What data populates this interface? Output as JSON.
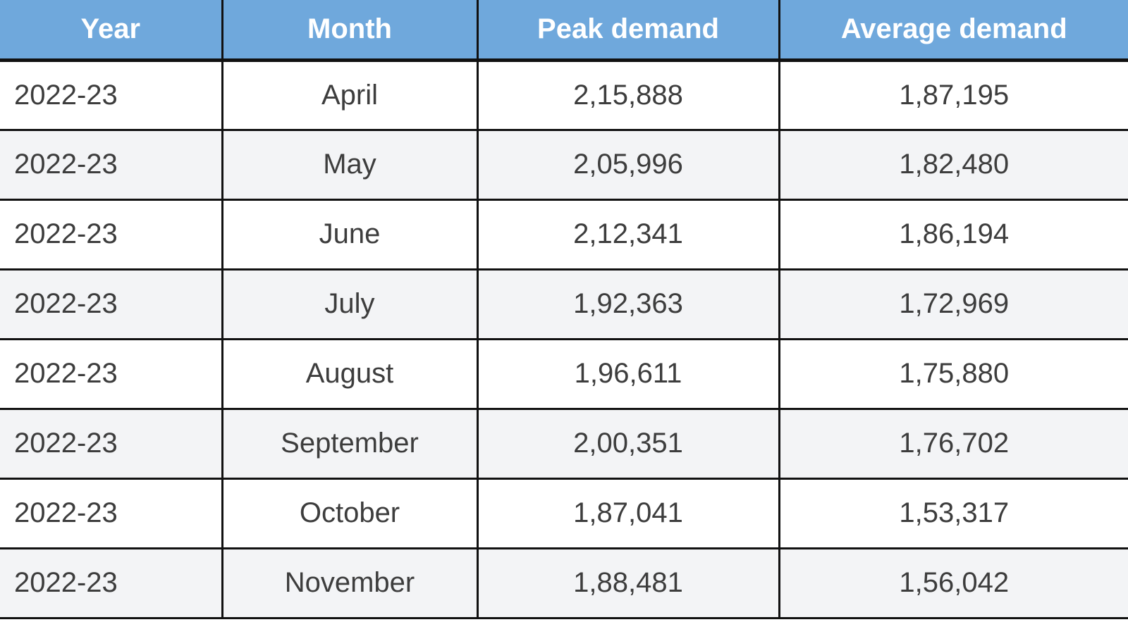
{
  "table": {
    "columns": [
      {
        "label": "Year"
      },
      {
        "label": "Month"
      },
      {
        "label": "Peak demand"
      },
      {
        "label": "Average demand"
      }
    ],
    "rows": [
      {
        "year": "2022-23",
        "month": "April",
        "peak": "2,15,888",
        "avg": "1,87,195"
      },
      {
        "year": "2022-23",
        "month": "May",
        "peak": "2,05,996",
        "avg": "1,82,480"
      },
      {
        "year": "2022-23",
        "month": "June",
        "peak": "2,12,341",
        "avg": "1,86,194"
      },
      {
        "year": "2022-23",
        "month": "July",
        "peak": "1,92,363",
        "avg": "1,72,969"
      },
      {
        "year": "2022-23",
        "month": "August",
        "peak": "1,96,611",
        "avg": "1,75,880"
      },
      {
        "year": "2022-23",
        "month": "September",
        "peak": "2,00,351",
        "avg": "1,76,702"
      },
      {
        "year": "2022-23",
        "month": "October",
        "peak": "1,87,041",
        "avg": "1,53,317"
      },
      {
        "year": "2022-23",
        "month": "November",
        "peak": "1,88,481",
        "avg": "1,56,042"
      }
    ]
  },
  "colors": {
    "header_bg": "#6fa8dc",
    "header_text": "#ffffff",
    "body_text": "#3d3d3d",
    "row_odd_bg": "#ffffff",
    "row_even_bg": "#f3f4f6",
    "border": "#111111"
  },
  "chart_data": {
    "type": "table",
    "title": "",
    "columns": [
      "Year",
      "Month",
      "Peak demand",
      "Average demand"
    ],
    "rows": [
      [
        "2022-23",
        "April",
        "2,15,888",
        "1,87,195"
      ],
      [
        "2022-23",
        "May",
        "2,05,996",
        "1,82,480"
      ],
      [
        "2022-23",
        "June",
        "2,12,341",
        "1,86,194"
      ],
      [
        "2022-23",
        "July",
        "1,92,363",
        "1,72,969"
      ],
      [
        "2022-23",
        "August",
        "1,96,611",
        "1,75,880"
      ],
      [
        "2022-23",
        "September",
        "2,00,351",
        "1,76,702"
      ],
      [
        "2022-23",
        "October",
        "1,87,041",
        "1,53,317"
      ],
      [
        "2022-23",
        "November",
        "1,88,481",
        "1,56,042"
      ]
    ],
    "series": [
      {
        "name": "Peak demand",
        "values": [
          215888,
          205996,
          212341,
          192363,
          196611,
          200351,
          187041,
          188481
        ]
      },
      {
        "name": "Average demand",
        "values": [
          187195,
          182480,
          186194,
          172969,
          175880,
          176702,
          153317,
          156042
        ]
      }
    ],
    "categories": [
      "April",
      "May",
      "June",
      "July",
      "August",
      "September",
      "October",
      "November"
    ],
    "year": "2022-23",
    "layout": {
      "header_row": true,
      "zebra_striping": true,
      "grid": true
    }
  }
}
